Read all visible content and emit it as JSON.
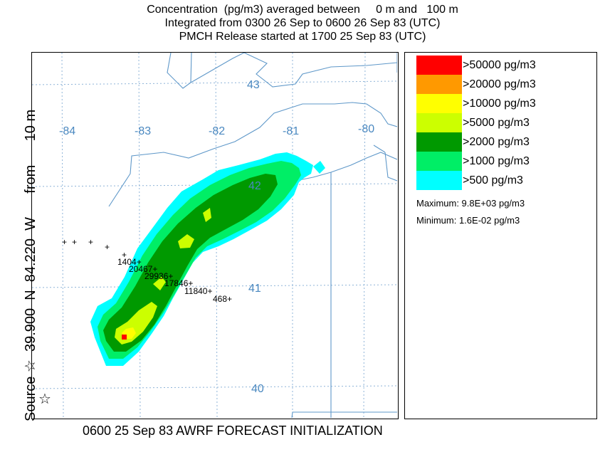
{
  "header": {
    "line1": "Concentration  (pg/m3) averaged between     0 m and   100 m",
    "line2": "Integrated from 0300 26 Sep to 0600 26 Sep 83 (UTC)",
    "line3": "PMCH Release started at 1700 25 Sep 83 (UTC)"
  },
  "map": {
    "longitude_labels": [
      "-84",
      "-83",
      "-82",
      "-81",
      "-80"
    ],
    "latitude_labels": [
      "43",
      "42",
      "41",
      "40"
    ],
    "source_marker": "☆",
    "point_values": [
      "1404+",
      "20467+",
      "29936+",
      "17846+",
      "11840+",
      "468+"
    ],
    "plus_markers": [
      "+",
      "+",
      "+",
      "+",
      "+"
    ],
    "colors": {
      "grid": "#8fb4d8",
      "border": "#5f98c9",
      "coord_label": "#4a88c0"
    }
  },
  "legend": {
    "items": [
      {
        "label": ">50000 pg/m3",
        "color": "#ff0000"
      },
      {
        "label": ">20000 pg/m3",
        "color": "#ff9900"
      },
      {
        "label": ">10000 pg/m3",
        "color": "#ffff00"
      },
      {
        "label": ">5000 pg/m3",
        "color": "#ccff00"
      },
      {
        "label": ">2000 pg/m3",
        "color": "#009900"
      },
      {
        "label": ">1000 pg/m3",
        "color": "#00ee66"
      },
      {
        "label": ">500 pg/m3",
        "color": "#00ffff"
      }
    ],
    "maximum": "Maximum: 9.8E+03 pg/m3",
    "minimum": "Minimum: 1.6E-02 pg/m3"
  },
  "side_label": "Source ☆  39.900  N  84.220  W      from      10 m",
  "footer": "0600 25 Sep 83 AWRF FORECAST INITIALIZATION"
}
